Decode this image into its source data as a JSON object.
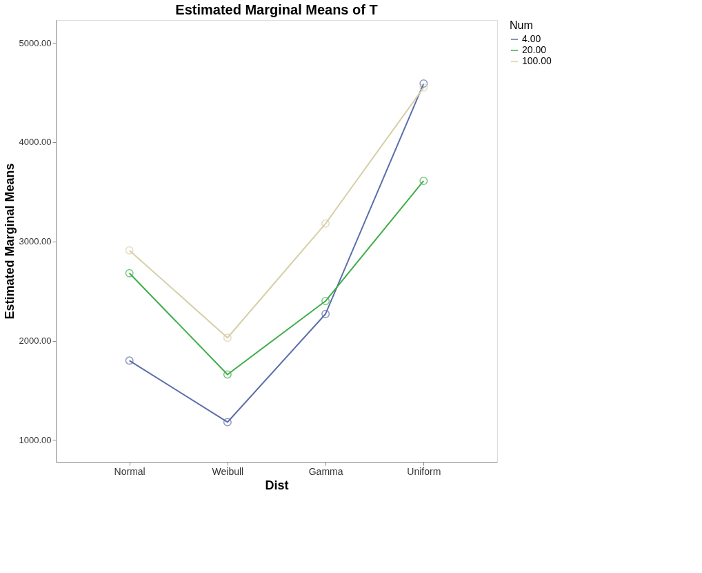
{
  "chart_data": {
    "type": "line",
    "title": "Estimated Marginal Means of T",
    "xlabel": "Dist",
    "ylabel": "Estimated Marginal Means",
    "legend_title": "Num",
    "categories": [
      "Normal",
      "Weibull",
      "Gamma",
      "Uniform"
    ],
    "series": [
      {
        "name": "4.00",
        "color": "#5a6eaa",
        "values": [
          1800,
          1180,
          2270,
          4590
        ]
      },
      {
        "name": "20.00",
        "color": "#3fae49",
        "values": [
          2680,
          1660,
          2400,
          3610
        ]
      },
      {
        "name": "100.00",
        "color": "#d6cfa6",
        "values": [
          2910,
          2030,
          3180,
          4550
        ]
      }
    ],
    "ylim": [
      780,
      5230
    ],
    "yticks": [
      {
        "value": 1000,
        "label": "1000.00"
      },
      {
        "value": 2000,
        "label": "2000.00"
      },
      {
        "value": 3000,
        "label": "3000.00"
      },
      {
        "value": 4000,
        "label": "4000.00"
      },
      {
        "value": 5000,
        "label": "5000.00"
      }
    ],
    "grid": false,
    "legend": "right",
    "marker": "circle",
    "line_style": "solid"
  }
}
